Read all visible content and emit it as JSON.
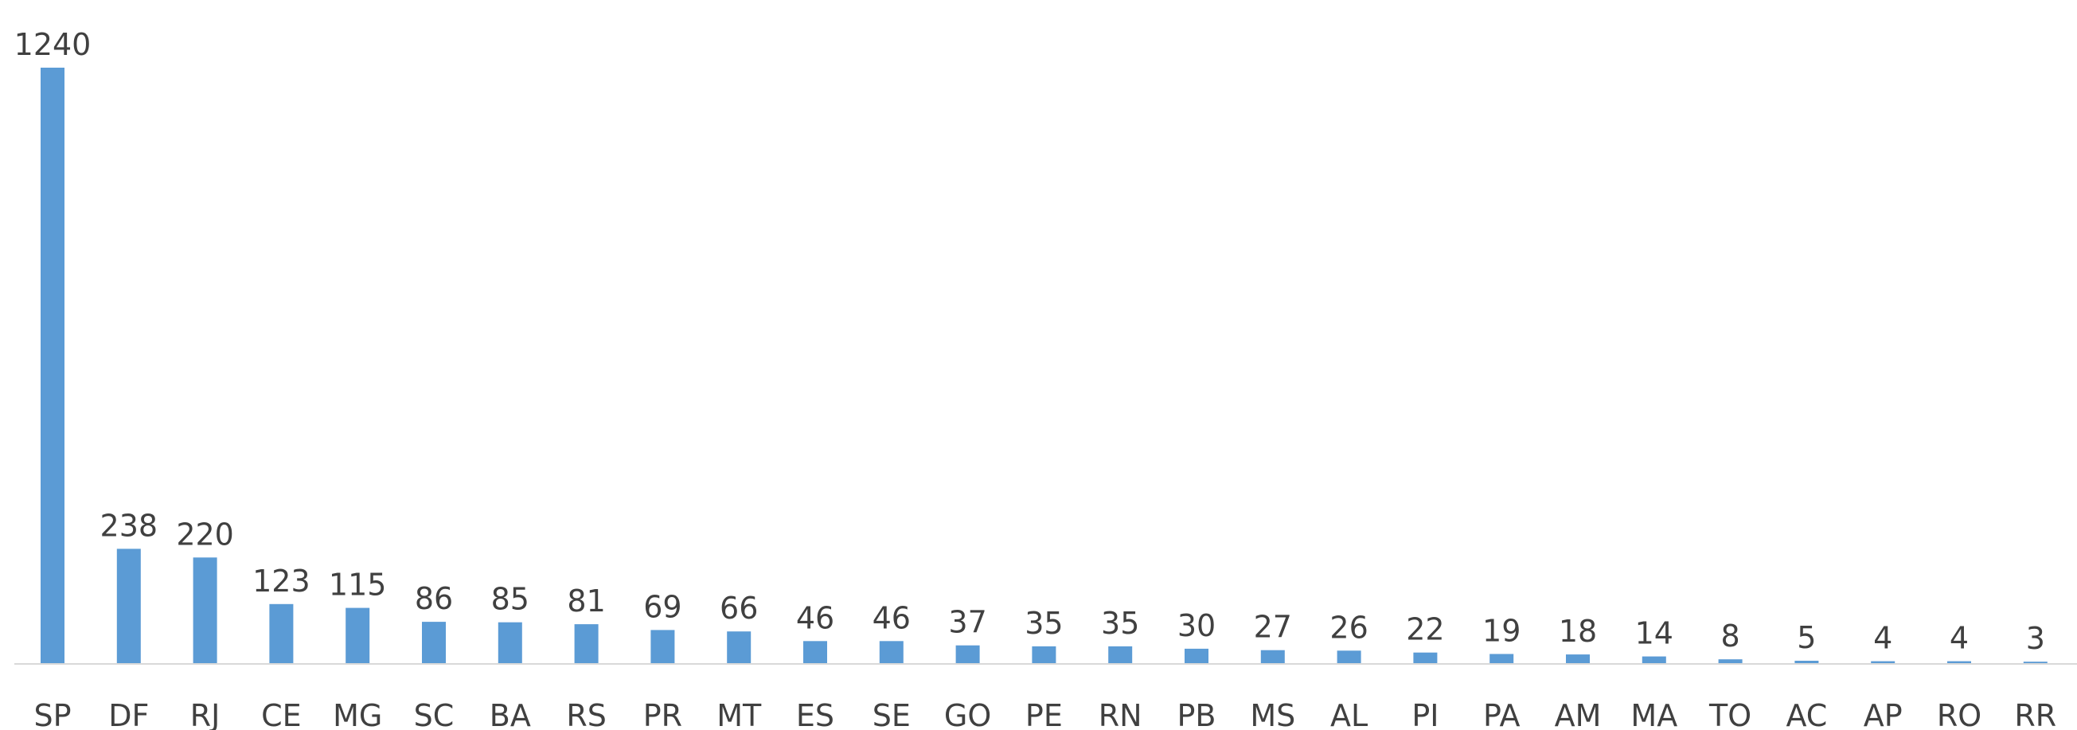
{
  "chart_data": {
    "type": "bar",
    "title": "",
    "xlabel": "",
    "ylabel": "",
    "categories": [
      "SP",
      "DF",
      "RJ",
      "CE",
      "MG",
      "SC",
      "BA",
      "RS",
      "PR",
      "MT",
      "ES",
      "SE",
      "GO",
      "PE",
      "RN",
      "PB",
      "MS",
      "AL",
      "PI",
      "PA",
      "AM",
      "MA",
      "TO",
      "AC",
      "AP",
      "RO",
      "RR"
    ],
    "values": [
      1240,
      238,
      220,
      123,
      115,
      86,
      85,
      81,
      69,
      66,
      46,
      46,
      37,
      35,
      35,
      30,
      27,
      26,
      22,
      19,
      18,
      14,
      8,
      5,
      4,
      4,
      3
    ],
    "ylim": [
      0,
      1240
    ],
    "grid": false,
    "legend": "none",
    "data_labels": true,
    "colors": {
      "bar": "#5b9bd5",
      "axis": "#d9d9d9",
      "text": "#404040"
    }
  }
}
